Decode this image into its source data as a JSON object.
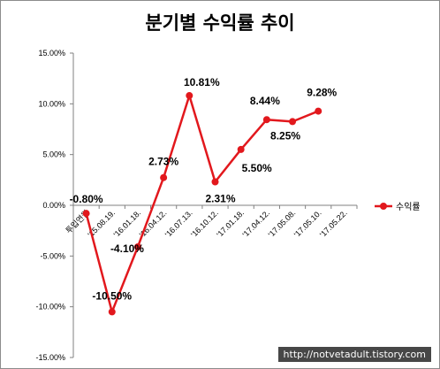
{
  "chart_data": {
    "type": "line",
    "title": "분기별 수익률 추이",
    "categories": [
      "투입연월",
      "'15.08.19.",
      "'16.01.18.",
      "'16.04.12.",
      "'16.07.13.",
      "'16.10.12.",
      "'17.01.18.",
      "'17.04.12.",
      "'17.05.08.",
      "'17.05.10.",
      "'17.05.22."
    ],
    "series": [
      {
        "name": "수익률",
        "values": [
          -0.8,
          -10.5,
          -4.1,
          2.73,
          10.81,
          2.31,
          5.5,
          8.44,
          8.25,
          9.28,
          null
        ],
        "labels": [
          "-0.80%",
          "-10.50%",
          "-4.10%",
          "2.73%",
          "10.81%",
          "2.31%",
          "5.50%",
          "8.44%",
          "8.25%",
          "9.28%",
          ""
        ]
      }
    ],
    "y_ticks": [
      "15.00%",
      "10.00%",
      "5.00%",
      "0.00%",
      "-5.00%",
      "-10.00%",
      "-15.00%"
    ],
    "ylim": [
      -15,
      15
    ],
    "legend": "right",
    "colors": {
      "series": "#e2181d",
      "axis": "#808080"
    }
  },
  "watermark": "http://notvetadult.tistory.com"
}
